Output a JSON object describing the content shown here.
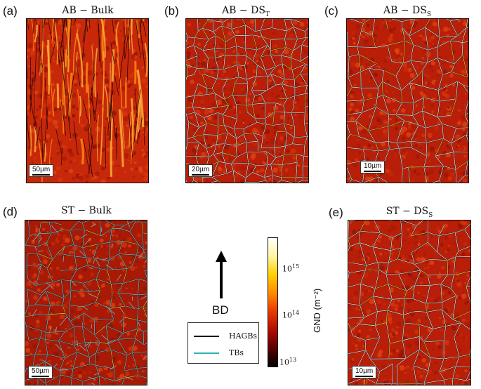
{
  "panels": [
    {
      "id": "a",
      "letter": "(a)",
      "title_main": "AB − Bulk",
      "title_sub": "",
      "scale_label": "50µm",
      "style": "bulk-ab"
    },
    {
      "id": "b",
      "letter": "(b)",
      "title_main": "AB − DS",
      "title_sub": "T",
      "scale_label": "20µm",
      "style": "fine-white"
    },
    {
      "id": "c",
      "letter": "(c)",
      "title_main": "AB − DS",
      "title_sub": "S",
      "scale_label": "10µm",
      "style": "cells-white"
    },
    {
      "id": "d",
      "letter": "(d)",
      "title_main": "ST − Bulk",
      "title_sub": "",
      "scale_label": "50µm",
      "style": "bulk-st"
    },
    {
      "id": "e",
      "letter": "(e)",
      "title_main": "ST − DS",
      "title_sub": "S",
      "scale_label": "10µm",
      "style": "cells-white"
    }
  ],
  "arrow": {
    "label": "BD"
  },
  "legend": {
    "items": [
      {
        "label": "HAGBs",
        "color": "#000000"
      },
      {
        "label": "TBs",
        "color": "#2bb5b5"
      }
    ]
  },
  "colorbar": {
    "label": "GND (m⁻²)",
    "ticks": [
      {
        "base": "10",
        "exp": "15"
      },
      {
        "base": "10",
        "exp": "14"
      },
      {
        "base": "10",
        "exp": "13"
      }
    ],
    "colors": [
      "#000000",
      "#5a0000",
      "#b30d00",
      "#e83a00",
      "#ff8a00",
      "#ffd000",
      "#fff6a0",
      "#ffffff"
    ]
  }
}
